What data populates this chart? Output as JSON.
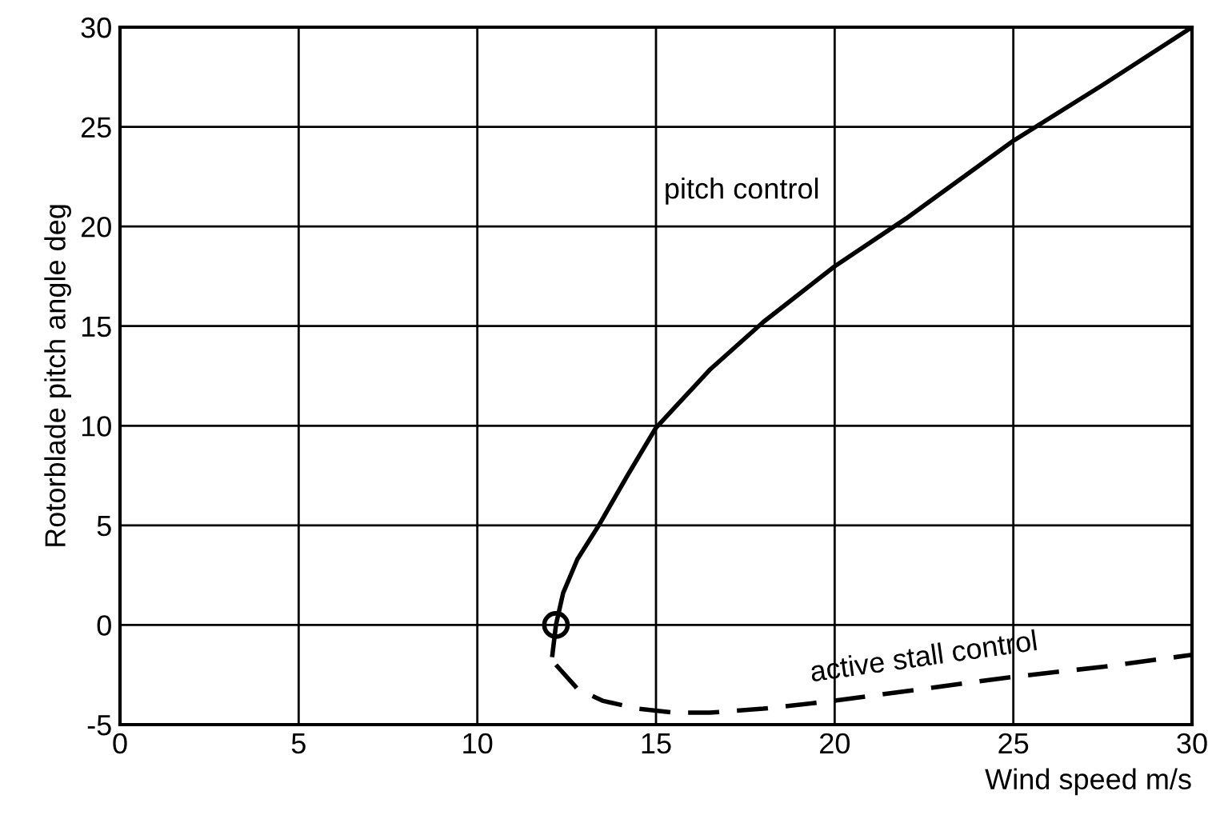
{
  "chart_data": {
    "type": "line",
    "xlabel": "Wind speed m/s",
    "ylabel": "Rotorblade pitch angle deg",
    "xlim": [
      0,
      30
    ],
    "ylim": [
      -5,
      30
    ],
    "xticks": [
      0,
      5,
      10,
      15,
      20,
      25,
      30
    ],
    "yticks": [
      -5,
      0,
      5,
      10,
      15,
      20,
      25,
      30
    ],
    "grid": true,
    "legend": false,
    "series": [
      {
        "color": "#000000",
        "line_style": "solid",
        "x": [
          12.1,
          12.2,
          12.4,
          12.8,
          13.4,
          14.2,
          15.0,
          16.5,
          18.0,
          20.0,
          22.0,
          25.0,
          27.5,
          30.0
        ],
        "values": [
          -1.5,
          0,
          1.6,
          3.3,
          5.0,
          7.5,
          9.9,
          12.8,
          15.2,
          18.0,
          20.4,
          24.3,
          27.1,
          30.0
        ]
      },
      {
        "color": "#000000",
        "line_style": "dashed",
        "x": [
          12.2,
          12.8,
          13.5,
          14.5,
          15.5,
          16.5,
          18.0,
          20.0,
          22.5,
          25.0,
          27.5,
          30.0
        ],
        "values": [
          -2.0,
          -3.2,
          -3.8,
          -4.2,
          -4.4,
          -4.4,
          -4.2,
          -3.8,
          -3.2,
          -2.6,
          -2.1,
          -1.5
        ]
      },
      {
        "type": "scatter",
        "color": "#000000",
        "marker": "circle",
        "x": [
          12.2
        ],
        "values": [
          0
        ]
      }
    ],
    "annotations": [
      "pitch control",
      "active stall control"
    ]
  }
}
